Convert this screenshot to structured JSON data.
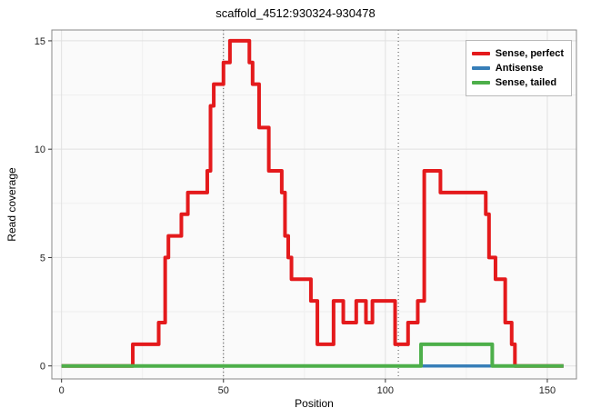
{
  "chart_data": {
    "type": "line",
    "subtype": "step-coverage",
    "title": "scaffold_4512:930324-930478",
    "xlabel": "Position",
    "ylabel": "Read coverage",
    "xlim": [
      -3,
      159
    ],
    "ylim": [
      -0.6,
      15.5
    ],
    "x_ticks": [
      0,
      50,
      100,
      150
    ],
    "y_ticks": [
      0,
      5,
      10,
      15
    ],
    "x_minor_ticks": [
      25,
      75,
      125
    ],
    "y_minor_ticks": [
      2.5,
      7.5,
      12.5
    ],
    "grid": true,
    "legend_position": "top-right-inside",
    "vlines": {
      "positions": [
        50,
        104
      ],
      "style": "dotted",
      "color": "#4d4d4d"
    },
    "x_end": 155,
    "panel": {
      "bg": "#fafafa",
      "grid_major": "#e0e0e0",
      "grid_minor": "#efefef",
      "border": "#888888"
    },
    "series": [
      {
        "name": "Sense, perfect",
        "color": "#E41A1C",
        "width": 4,
        "steps": [
          [
            0,
            0
          ],
          [
            22,
            1
          ],
          [
            30,
            2
          ],
          [
            32,
            5
          ],
          [
            33,
            6
          ],
          [
            37,
            7
          ],
          [
            39,
            8
          ],
          [
            45,
            9
          ],
          [
            46,
            12
          ],
          [
            47,
            13
          ],
          [
            50,
            14
          ],
          [
            52,
            15
          ],
          [
            58,
            14
          ],
          [
            59,
            13
          ],
          [
            61,
            11
          ],
          [
            64,
            9
          ],
          [
            68,
            8
          ],
          [
            69,
            6
          ],
          [
            70,
            5
          ],
          [
            71,
            4
          ],
          [
            77,
            3
          ],
          [
            79,
            1
          ],
          [
            84,
            3
          ],
          [
            87,
            2
          ],
          [
            91,
            3
          ],
          [
            94,
            2
          ],
          [
            96,
            3
          ],
          [
            103,
            1
          ],
          [
            107,
            2
          ],
          [
            110,
            3
          ],
          [
            112,
            9
          ],
          [
            117,
            8
          ],
          [
            131,
            7
          ],
          [
            132,
            5
          ],
          [
            134,
            4
          ],
          [
            137,
            2
          ],
          [
            139,
            1
          ],
          [
            140,
            0
          ]
        ]
      },
      {
        "name": "Antisense",
        "color": "#377EB8",
        "width": 3.5,
        "steps": [
          [
            0,
            0
          ]
        ]
      },
      {
        "name": "Sense, tailed",
        "color": "#4DAF4A",
        "width": 4,
        "steps": [
          [
            0,
            0
          ],
          [
            111,
            1
          ],
          [
            133,
            0
          ]
        ]
      }
    ]
  }
}
